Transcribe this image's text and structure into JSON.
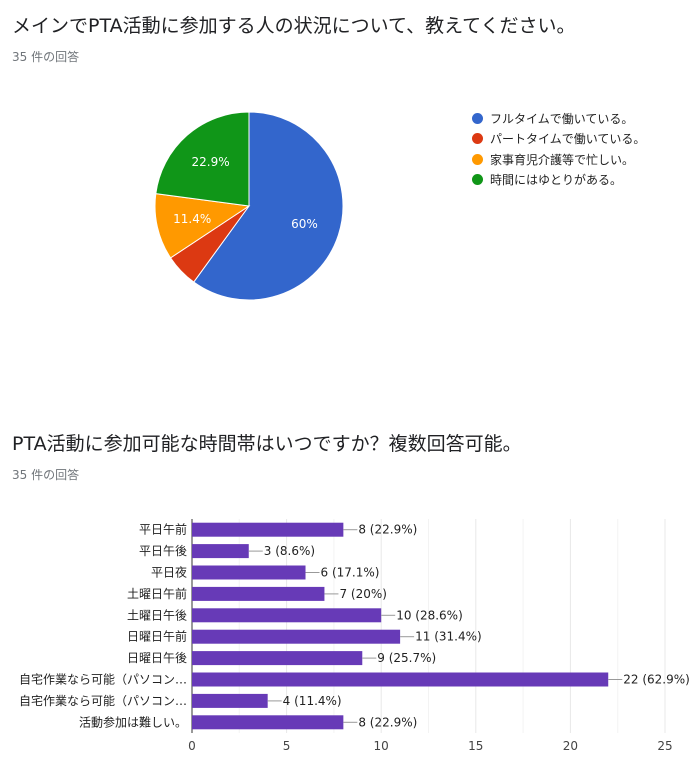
{
  "q1": {
    "title": "メインでPTA活動に参加する人の状況について、教えてください。",
    "response_count": "35 件の回答"
  },
  "q2": {
    "title": "PTA活動に参加可能な時間帯はいつですか？複数回答可能。",
    "response_count": "35 件の回答"
  },
  "chart_data": [
    {
      "type": "pie",
      "legend_position": "right",
      "slices": [
        {
          "label": "フルタイムで働いている。",
          "value": 60,
          "display": "60%",
          "color": "#3366cc"
        },
        {
          "label": "パートタイムで働いている。",
          "value": 5.7,
          "display": "",
          "color": "#dc3912"
        },
        {
          "label": "家事育児介護等で忙しい。",
          "value": 11.4,
          "display": "11.4%",
          "color": "#ff9900"
        },
        {
          "label": "時間にはゆとりがある。",
          "value": 22.9,
          "display": "22.9%",
          "color": "#109618"
        }
      ]
    },
    {
      "type": "bar",
      "orientation": "horizontal",
      "color": "#673ab7",
      "categories": [
        "平日午前",
        "平日午後",
        "平日夜",
        "土曜日午前",
        "土曜日午後",
        "日曜日午前",
        "日曜日午後",
        "自宅作業なら可能（パソコン…",
        "自宅作業なら可能（パソコン…",
        "活動参加は難しい。"
      ],
      "values": [
        8,
        3,
        6,
        7,
        10,
        11,
        9,
        22,
        4,
        8
      ],
      "data_labels": [
        "8 (22.9%)",
        "3 (8.6%)",
        "6 (17.1%)",
        "7 (20%)",
        "10 (28.6%)",
        "11 (31.4%)",
        "9 (25.7%)",
        "22 (62.9%)",
        "4 (11.4%)",
        "8 (22.9%)"
      ],
      "xlim": [
        0,
        25
      ],
      "xticks": [
        0,
        5,
        10,
        15,
        20,
        25
      ],
      "grid": true
    }
  ]
}
